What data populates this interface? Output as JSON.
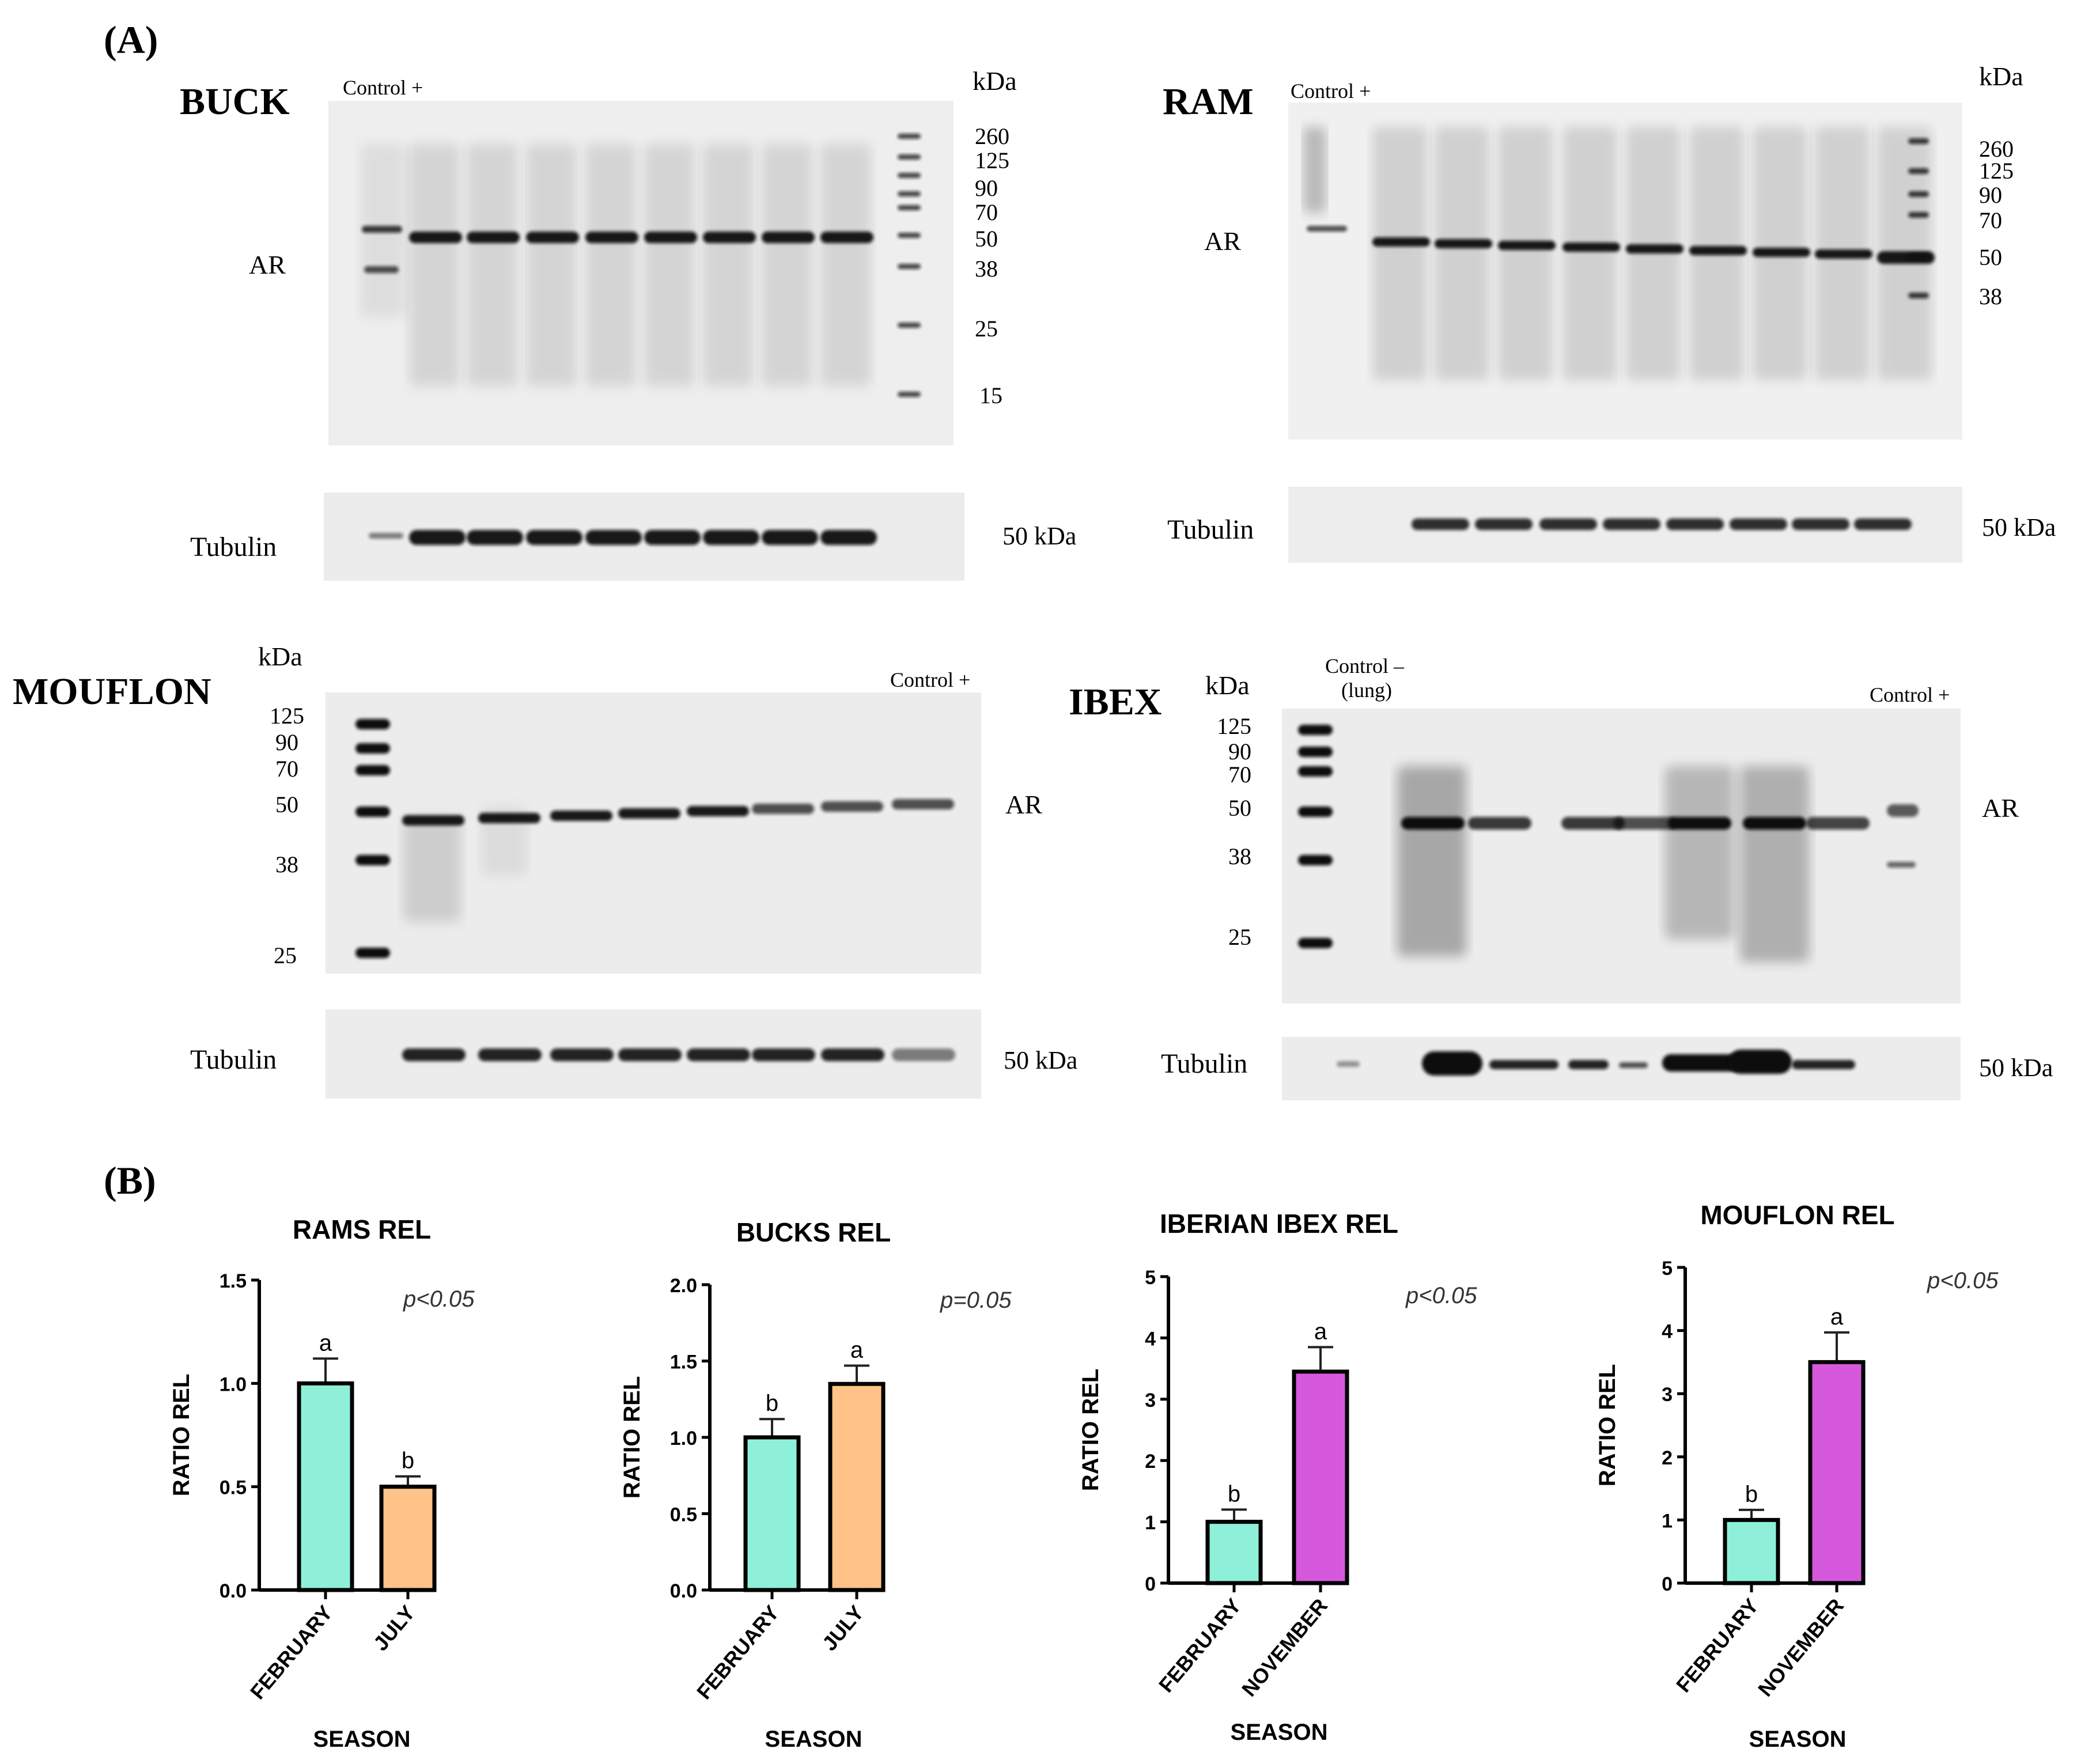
{
  "panel_labels": {
    "a": "(A)",
    "b": "(B)"
  },
  "blots": {
    "buck": {
      "species": "BUCK",
      "control_top": "Control +",
      "kda_title": "kDa",
      "markers": [
        "260",
        "125",
        "90",
        "70",
        "50",
        "38",
        "25",
        "15"
      ],
      "protein_label": "AR",
      "loading_label": "Tubulin",
      "loading_kda": "50 kDa"
    },
    "ram": {
      "species": "RAM",
      "control_top": "Control +",
      "kda_title": "kDa",
      "markers": [
        "260",
        "125",
        "90",
        "70",
        "50",
        "38"
      ],
      "protein_label": "AR",
      "loading_label": "Tubulin",
      "loading_kda": "50 kDa"
    },
    "mouflon": {
      "species": "MOUFLON",
      "control_top": "Control +",
      "kda_title": "kDa",
      "markers": [
        "125",
        "90",
        "70",
        "50",
        "38",
        "25"
      ],
      "protein_label": "AR",
      "loading_label": "Tubulin",
      "loading_kda": "50 kDa"
    },
    "ibex": {
      "species": "IBEX",
      "control_neg_1": "Control –",
      "control_neg_2": "(lung)",
      "control_top": "Control +",
      "kda_title": "kDa",
      "markers": [
        "125",
        "90",
        "70",
        "50",
        "38",
        "25"
      ],
      "protein_label": "AR",
      "loading_label": "Tubulin",
      "loading_kda": "50 kDa"
    }
  },
  "chart_data": [
    {
      "type": "bar",
      "title": "RAMS REL",
      "xlabel": "SEASON",
      "ylabel": "RATIO REL",
      "categories": [
        "FEBRUARY",
        "JULY"
      ],
      "values": [
        1.0,
        0.5
      ],
      "errors": [
        0.12,
        0.05
      ],
      "letters": [
        "a",
        "b"
      ],
      "colors": [
        "#8ef0d9",
        "#ffc389"
      ],
      "ylim": [
        0,
        1.5
      ],
      "yticks": [
        "0.0",
        "0.5",
        "1.0",
        "1.5"
      ],
      "pvalue": "p<0.05"
    },
    {
      "type": "bar",
      "title": "BUCKS REL",
      "xlabel": "SEASON",
      "ylabel": "RATIO REL",
      "categories": [
        "FEBRUARY",
        "JULY"
      ],
      "values": [
        1.0,
        1.35
      ],
      "errors": [
        0.12,
        0.12
      ],
      "letters": [
        "b",
        "a"
      ],
      "colors": [
        "#8ef0d9",
        "#ffc389"
      ],
      "ylim": [
        0,
        2.0
      ],
      "yticks": [
        "0.0",
        "0.5",
        "1.0",
        "1.5",
        "2.0"
      ],
      "pvalue": "p=0.05"
    },
    {
      "type": "bar",
      "title": "IBERIAN IBEX REL",
      "xlabel": "SEASON",
      "ylabel": "RATIO REL",
      "categories": [
        "FEBRUARY",
        "NOVEMBER"
      ],
      "values": [
        1.0,
        3.45
      ],
      "errors": [
        0.2,
        0.4
      ],
      "letters": [
        "b",
        "a"
      ],
      "colors": [
        "#8ef0d9",
        "#d659dd"
      ],
      "ylim": [
        0,
        5
      ],
      "yticks": [
        "0",
        "1",
        "2",
        "3",
        "4",
        "5"
      ],
      "pvalue": "p<0.05"
    },
    {
      "type": "bar",
      "title": "MOUFLON REL",
      "xlabel": "SEASON",
      "ylabel": "RATIO REL",
      "categories": [
        "FEBRUARY",
        "NOVEMBER"
      ],
      "values": [
        1.0,
        3.5
      ],
      "errors": [
        0.16,
        0.47
      ],
      "letters": [
        "b",
        "a"
      ],
      "colors": [
        "#8ef0d9",
        "#d659dd"
      ],
      "ylim": [
        0,
        5
      ],
      "yticks": [
        "0",
        "1",
        "2",
        "3",
        "4",
        "5"
      ],
      "pvalue": "p<0.05"
    }
  ]
}
